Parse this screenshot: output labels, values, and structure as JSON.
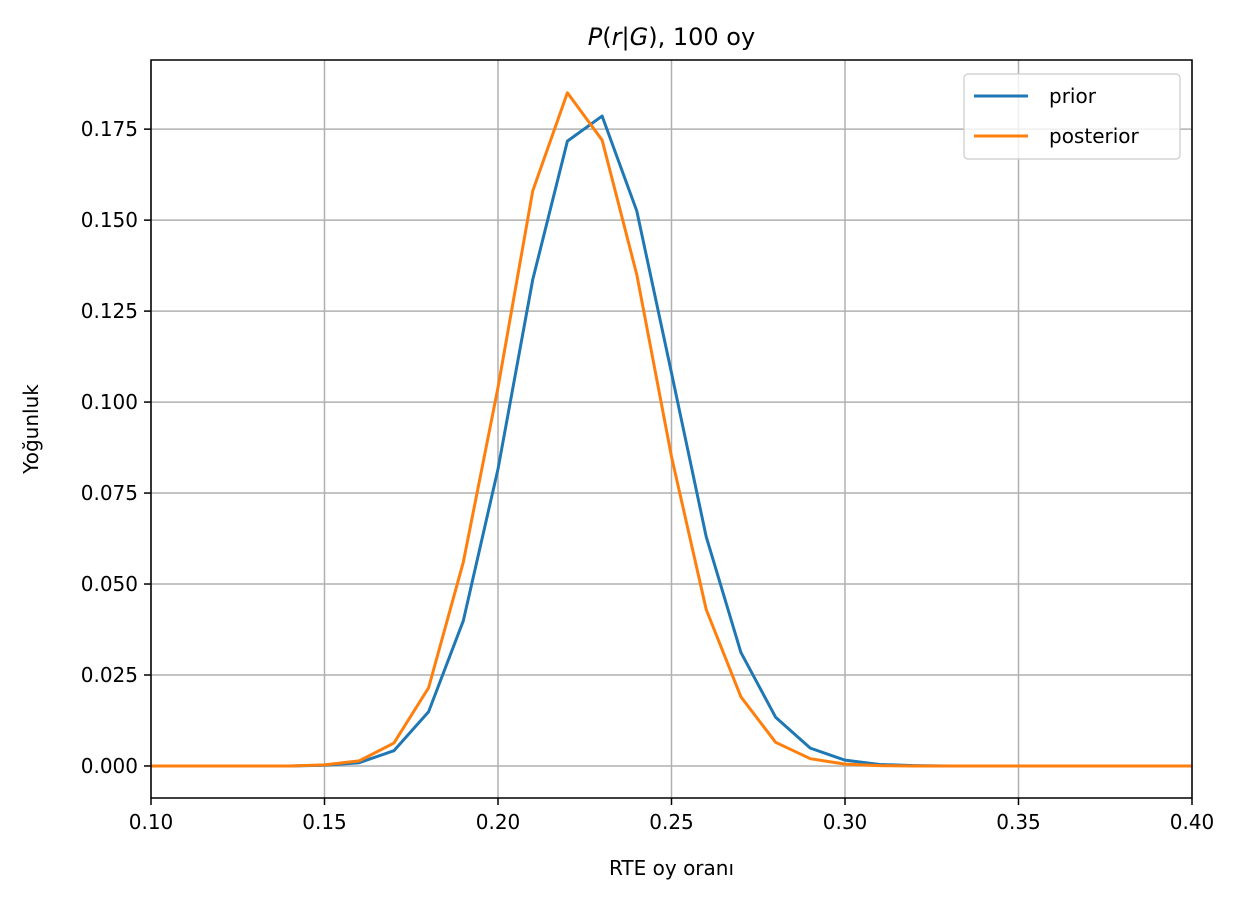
{
  "chart_data": {
    "type": "line",
    "title": "P(r|G), 100 oy",
    "title_parts": {
      "p": "P",
      "open": "(",
      "r": "r",
      "bar": "|",
      "g": "G",
      "rest": "), 100 oy"
    },
    "xlabel": "RTE oy oranı",
    "ylabel": "Yoğunluk",
    "xlim": [
      0.1,
      0.4
    ],
    "ylim": [
      -0.0088,
      0.194
    ],
    "xticks": [
      0.1,
      0.15,
      0.2,
      0.25,
      0.3,
      0.35,
      0.4
    ],
    "xtick_labels": [
      "0.10",
      "0.15",
      "0.20",
      "0.25",
      "0.30",
      "0.35",
      "0.40"
    ],
    "yticks": [
      0.0,
      0.025,
      0.05,
      0.075,
      0.1,
      0.125,
      0.15,
      0.175
    ],
    "ytick_labels": [
      "0.000",
      "0.025",
      "0.050",
      "0.075",
      "0.100",
      "0.125",
      "0.150",
      "0.175"
    ],
    "grid": true,
    "legend_position": "top-right",
    "x": [
      0.1,
      0.11,
      0.12,
      0.13,
      0.14,
      0.15,
      0.16,
      0.17,
      0.18,
      0.19,
      0.2,
      0.21,
      0.22,
      0.23,
      0.24,
      0.25,
      0.26,
      0.27,
      0.28,
      0.29,
      0.3,
      0.31,
      0.32,
      0.33,
      0.34,
      0.35,
      0.36,
      0.37,
      0.38,
      0.39,
      0.4
    ],
    "series": [
      {
        "name": "prior",
        "color": "#1f77b4",
        "values": [
          0.0,
          0.0,
          0.0,
          0.0,
          0.0,
          0.0002,
          0.0009,
          0.0042,
          0.0149,
          0.0399,
          0.0816,
          0.1336,
          0.1717,
          0.1786,
          0.1525,
          0.108,
          0.063,
          0.0312,
          0.0134,
          0.0049,
          0.0016,
          0.0004,
          0.0001,
          0.0,
          0.0,
          0.0,
          0.0,
          0.0,
          0.0,
          0.0,
          0.0
        ]
      },
      {
        "name": "posterior",
        "color": "#ff7f0e",
        "values": [
          0.0,
          0.0,
          0.0,
          0.0,
          0.0,
          0.0003,
          0.0014,
          0.0063,
          0.0215,
          0.056,
          0.104,
          0.158,
          0.185,
          0.172,
          0.135,
          0.085,
          0.043,
          0.019,
          0.0065,
          0.002,
          0.0005,
          0.0001,
          0.0,
          0.0,
          0.0,
          0.0,
          0.0,
          0.0,
          0.0,
          0.0,
          0.0
        ]
      }
    ]
  }
}
